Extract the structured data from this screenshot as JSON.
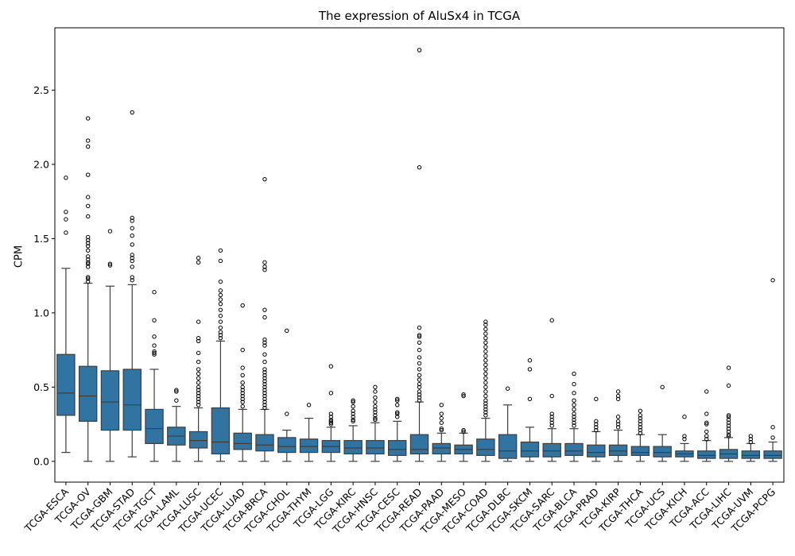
{
  "chart_data": {
    "type": "box",
    "title": "The expression of AluSx4 in TCGA",
    "xlabel": "",
    "ylabel": "CPM",
    "ylim": [
      -0.14,
      2.92
    ],
    "yticks": [
      "0.0",
      "0.5",
      "1.0",
      "1.5",
      "2.0",
      "2.5"
    ],
    "grid": false,
    "box_color": "#3274a1",
    "categories": [
      "TCGA-ESCA",
      "TCGA-OV",
      "TCGA-GBM",
      "TCGA-STAD",
      "TCGA-TGCT",
      "TCGA-LAML",
      "TCGA-LUSC",
      "TCGA-UCEC",
      "TCGA-LUAD",
      "TCGA-BRCA",
      "TCGA-CHOL",
      "TCGA-THYM",
      "TCGA-LGG",
      "TCGA-KIRC",
      "TCGA-HNSC",
      "TCGA-CESC",
      "TCGA-READ",
      "TCGA-PAAD",
      "TCGA-MESO",
      "TCGA-COAD",
      "TCGA-DLBC",
      "TCGA-SKCM",
      "TCGA-SARC",
      "TCGA-BLCA",
      "TCGA-PRAD",
      "TCGA-KIRP",
      "TCGA-THCA",
      "TCGA-UCS",
      "TCGA-KICH",
      "TCGA-ACC",
      "TCGA-LIHC",
      "TCGA-UVM",
      "TCGA-PCPG"
    ],
    "boxes": [
      {
        "whisker_low": 0.06,
        "q1": 0.31,
        "median": 0.46,
        "q3": 0.72,
        "whisker_high": 1.3,
        "outliers": [
          1.54,
          1.63,
          1.68,
          1.91
        ]
      },
      {
        "whisker_low": 0.0,
        "q1": 0.27,
        "median": 0.44,
        "q3": 0.64,
        "whisker_high": 1.2,
        "outliers": [
          1.21,
          1.23,
          1.24,
          1.31,
          1.33,
          1.34,
          1.36,
          1.38,
          1.42,
          1.45,
          1.47,
          1.49,
          1.51,
          1.65,
          1.72,
          1.78,
          1.93,
          2.12,
          2.16,
          2.31
        ]
      },
      {
        "whisker_low": 0.0,
        "q1": 0.21,
        "median": 0.4,
        "q3": 0.61,
        "whisker_high": 1.18,
        "outliers": [
          1.32,
          1.33,
          1.55
        ]
      },
      {
        "whisker_low": 0.03,
        "q1": 0.21,
        "median": 0.38,
        "q3": 0.62,
        "whisker_high": 1.19,
        "outliers": [
          1.22,
          1.24,
          1.31,
          1.35,
          1.37,
          1.39,
          1.46,
          1.52,
          1.57,
          1.62,
          1.64,
          2.35
        ]
      },
      {
        "whisker_low": 0.0,
        "q1": 0.12,
        "median": 0.22,
        "q3": 0.35,
        "whisker_high": 0.62,
        "outliers": [
          0.72,
          0.73,
          0.74,
          0.78,
          0.84,
          0.95,
          1.14
        ]
      },
      {
        "whisker_low": 0.0,
        "q1": 0.11,
        "median": 0.17,
        "q3": 0.23,
        "whisker_high": 0.37,
        "outliers": [
          0.41,
          0.47,
          0.48
        ]
      },
      {
        "whisker_low": 0.0,
        "q1": 0.09,
        "median": 0.14,
        "q3": 0.2,
        "whisker_high": 0.36,
        "outliers": [
          0.38,
          0.4,
          0.42,
          0.44,
          0.46,
          0.48,
          0.5,
          0.53,
          0.56,
          0.59,
          0.62,
          0.67,
          0.73,
          0.81,
          0.83,
          0.94,
          1.34,
          1.37
        ]
      },
      {
        "whisker_low": 0.0,
        "q1": 0.05,
        "median": 0.13,
        "q3": 0.36,
        "whisker_high": 0.81,
        "outliers": [
          0.83,
          0.85,
          0.87,
          0.9,
          0.94,
          0.98,
          1.02,
          1.06,
          1.09,
          1.12,
          1.15,
          1.21,
          1.35,
          1.42
        ]
      },
      {
        "whisker_low": 0.0,
        "q1": 0.08,
        "median": 0.12,
        "q3": 0.19,
        "whisker_high": 0.35,
        "outliers": [
          0.37,
          0.4,
          0.42,
          0.44,
          0.46,
          0.48,
          0.5,
          0.53,
          0.58,
          0.63,
          0.75,
          1.05
        ]
      },
      {
        "whisker_low": 0.0,
        "q1": 0.07,
        "median": 0.11,
        "q3": 0.18,
        "whisker_high": 0.35,
        "outliers": [
          0.36,
          0.38,
          0.4,
          0.42,
          0.44,
          0.46,
          0.48,
          0.5,
          0.52,
          0.54,
          0.56,
          0.58,
          0.6,
          0.62,
          0.67,
          0.72,
          0.78,
          0.8,
          0.82,
          0.97,
          1.02,
          1.29,
          1.31,
          1.34,
          1.9
        ]
      },
      {
        "whisker_low": 0.0,
        "q1": 0.06,
        "median": 0.1,
        "q3": 0.16,
        "whisker_high": 0.21,
        "outliers": [
          0.32,
          0.88
        ]
      },
      {
        "whisker_low": 0.0,
        "q1": 0.06,
        "median": 0.1,
        "q3": 0.15,
        "whisker_high": 0.29,
        "outliers": [
          0.38
        ]
      },
      {
        "whisker_low": 0.0,
        "q1": 0.06,
        "median": 0.1,
        "q3": 0.14,
        "whisker_high": 0.23,
        "outliers": [
          0.25,
          0.26,
          0.27,
          0.28,
          0.3,
          0.32,
          0.46,
          0.64
        ]
      },
      {
        "whisker_low": 0.0,
        "q1": 0.05,
        "median": 0.09,
        "q3": 0.14,
        "whisker_high": 0.24,
        "outliers": [
          0.27,
          0.28,
          0.3,
          0.32,
          0.34,
          0.37,
          0.4,
          0.41
        ]
      },
      {
        "whisker_low": 0.0,
        "q1": 0.05,
        "median": 0.09,
        "q3": 0.14,
        "whisker_high": 0.26,
        "outliers": [
          0.28,
          0.29,
          0.31,
          0.33,
          0.35,
          0.37,
          0.4,
          0.43,
          0.47,
          0.5
        ]
      },
      {
        "whisker_low": 0.0,
        "q1": 0.04,
        "median": 0.08,
        "q3": 0.14,
        "whisker_high": 0.27,
        "outliers": [
          0.3,
          0.32,
          0.33,
          0.38,
          0.41,
          0.42
        ]
      },
      {
        "whisker_low": 0.0,
        "q1": 0.05,
        "median": 0.08,
        "q3": 0.18,
        "whisker_high": 0.4,
        "outliers": [
          0.41,
          0.43,
          0.45,
          0.47,
          0.5,
          0.52,
          0.55,
          0.58,
          0.62,
          0.66,
          0.7,
          0.75,
          0.8,
          0.84,
          0.85,
          0.9,
          1.98,
          2.77
        ]
      },
      {
        "whisker_low": 0.0,
        "q1": 0.05,
        "median": 0.09,
        "q3": 0.12,
        "whisker_high": 0.19,
        "outliers": [
          0.21,
          0.22,
          0.26,
          0.29,
          0.32,
          0.38
        ]
      },
      {
        "whisker_low": 0.0,
        "q1": 0.05,
        "median": 0.08,
        "q3": 0.11,
        "whisker_high": 0.19,
        "outliers": [
          0.2,
          0.21,
          0.44,
          0.45
        ]
      },
      {
        "whisker_low": 0.0,
        "q1": 0.04,
        "median": 0.08,
        "q3": 0.15,
        "whisker_high": 0.29,
        "outliers": [
          0.31,
          0.33,
          0.35,
          0.37,
          0.39,
          0.41,
          0.44,
          0.47,
          0.5,
          0.53,
          0.56,
          0.59,
          0.62,
          0.65,
          0.68,
          0.71,
          0.74,
          0.77,
          0.8,
          0.83,
          0.86,
          0.89,
          0.92,
          0.94
        ]
      },
      {
        "whisker_low": 0.0,
        "q1": 0.02,
        "median": 0.07,
        "q3": 0.18,
        "whisker_high": 0.38,
        "outliers": [
          0.49
        ]
      },
      {
        "whisker_low": 0.0,
        "q1": 0.03,
        "median": 0.07,
        "q3": 0.13,
        "whisker_high": 0.23,
        "outliers": [
          0.42,
          0.62,
          0.68
        ]
      },
      {
        "whisker_low": 0.0,
        "q1": 0.03,
        "median": 0.07,
        "q3": 0.12,
        "whisker_high": 0.22,
        "outliers": [
          0.24,
          0.26,
          0.28,
          0.3,
          0.32,
          0.44,
          0.95
        ]
      },
      {
        "whisker_low": 0.0,
        "q1": 0.04,
        "median": 0.07,
        "q3": 0.12,
        "whisker_high": 0.22,
        "outliers": [
          0.24,
          0.26,
          0.28,
          0.3,
          0.32,
          0.35,
          0.38,
          0.41,
          0.46,
          0.52,
          0.59
        ]
      },
      {
        "whisker_low": 0.0,
        "q1": 0.03,
        "median": 0.06,
        "q3": 0.11,
        "whisker_high": 0.2,
        "outliers": [
          0.21,
          0.23,
          0.25,
          0.27,
          0.42
        ]
      },
      {
        "whisker_low": 0.0,
        "q1": 0.04,
        "median": 0.07,
        "q3": 0.11,
        "whisker_high": 0.21,
        "outliers": [
          0.23,
          0.25,
          0.27,
          0.3,
          0.42,
          0.44,
          0.47
        ]
      },
      {
        "whisker_low": 0.0,
        "q1": 0.04,
        "median": 0.06,
        "q3": 0.1,
        "whisker_high": 0.18,
        "outliers": [
          0.19,
          0.21,
          0.23,
          0.25,
          0.27,
          0.29,
          0.31,
          0.34
        ]
      },
      {
        "whisker_low": 0.0,
        "q1": 0.03,
        "median": 0.06,
        "q3": 0.1,
        "whisker_high": 0.18,
        "outliers": [
          0.5
        ]
      },
      {
        "whisker_low": 0.0,
        "q1": 0.03,
        "median": 0.05,
        "q3": 0.07,
        "whisker_high": 0.12,
        "outliers": [
          0.15,
          0.17,
          0.3
        ]
      },
      {
        "whisker_low": 0.0,
        "q1": 0.02,
        "median": 0.04,
        "q3": 0.07,
        "whisker_high": 0.14,
        "outliers": [
          0.15,
          0.17,
          0.2,
          0.25,
          0.26,
          0.32,
          0.47
        ]
      },
      {
        "whisker_low": 0.0,
        "q1": 0.02,
        "median": 0.05,
        "q3": 0.08,
        "whisker_high": 0.16,
        "outliers": [
          0.17,
          0.18,
          0.2,
          0.22,
          0.24,
          0.26,
          0.28,
          0.3,
          0.31,
          0.51,
          0.63
        ]
      },
      {
        "whisker_low": 0.0,
        "q1": 0.02,
        "median": 0.04,
        "q3": 0.07,
        "whisker_high": 0.12,
        "outliers": [
          0.13,
          0.15,
          0.17
        ]
      },
      {
        "whisker_low": 0.0,
        "q1": 0.02,
        "median": 0.04,
        "q3": 0.07,
        "whisker_high": 0.13,
        "outliers": [
          0.16,
          0.23,
          1.22
        ]
      }
    ]
  }
}
